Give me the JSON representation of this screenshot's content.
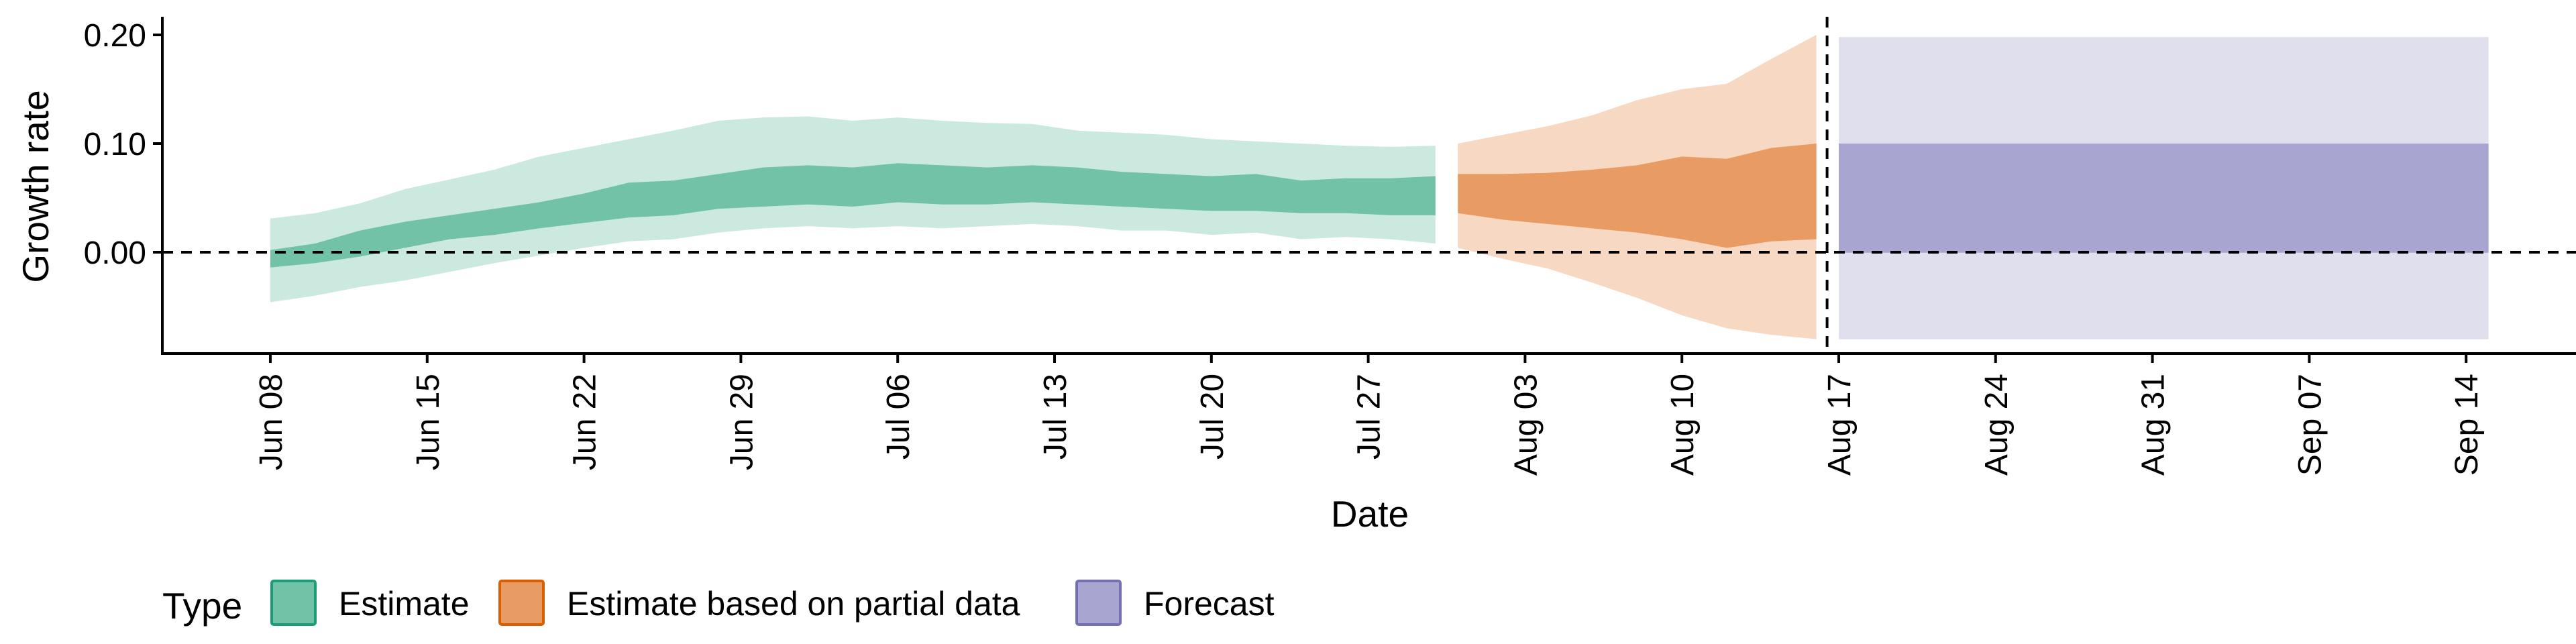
{
  "chart_data": {
    "type": "area",
    "xlabel": "Date",
    "ylabel": "Growth rate",
    "ylim": [
      -0.095,
      0.21
    ],
    "xlim": [
      "2020-06-01",
      "2020-09-21"
    ],
    "y_ticks": [
      "0.00",
      "0.10",
      "0.20"
    ],
    "x_ticks": [
      "Jun 08",
      "Jun 15",
      "Jun 22",
      "Jun 29",
      "Jul 06",
      "Jul 13",
      "Jul 20",
      "Jul 27",
      "Aug 03",
      "Aug 10",
      "Aug 17",
      "Aug 24",
      "Aug 31",
      "Sep 07",
      "Sep 14"
    ],
    "reference_lines": {
      "horizontal_y": 0,
      "vertical_date": "2020-08-16",
      "style": "dashed"
    },
    "grid": false,
    "legend": {
      "title": "Type",
      "position": "bottom-left"
    },
    "series": [
      {
        "name": "Estimate",
        "color": "#1b9e77",
        "points": [
          {
            "date": "2020-06-08",
            "lower90": -0.046,
            "lower50": -0.014,
            "upper50": 0.002,
            "upper90": 0.031
          },
          {
            "date": "2020-06-10",
            "lower90": -0.04,
            "lower50": -0.01,
            "upper50": 0.008,
            "upper90": 0.036
          },
          {
            "date": "2020-06-12",
            "lower90": -0.032,
            "lower50": -0.004,
            "upper50": 0.02,
            "upper90": 0.045
          },
          {
            "date": "2020-06-14",
            "lower90": -0.026,
            "lower50": 0.004,
            "upper50": 0.028,
            "upper90": 0.058
          },
          {
            "date": "2020-06-16",
            "lower90": -0.018,
            "lower50": 0.012,
            "upper50": 0.034,
            "upper90": 0.067
          },
          {
            "date": "2020-06-18",
            "lower90": -0.01,
            "lower50": 0.016,
            "upper50": 0.04,
            "upper90": 0.076
          },
          {
            "date": "2020-06-20",
            "lower90": -0.003,
            "lower50": 0.022,
            "upper50": 0.046,
            "upper90": 0.088
          },
          {
            "date": "2020-06-22",
            "lower90": 0.004,
            "lower50": 0.027,
            "upper50": 0.054,
            "upper90": 0.096
          },
          {
            "date": "2020-06-24",
            "lower90": 0.01,
            "lower50": 0.032,
            "upper50": 0.064,
            "upper90": 0.104
          },
          {
            "date": "2020-06-26",
            "lower90": 0.012,
            "lower50": 0.034,
            "upper50": 0.066,
            "upper90": 0.112
          },
          {
            "date": "2020-06-28",
            "lower90": 0.018,
            "lower50": 0.04,
            "upper50": 0.072,
            "upper90": 0.121
          },
          {
            "date": "2020-06-30",
            "lower90": 0.022,
            "lower50": 0.042,
            "upper50": 0.078,
            "upper90": 0.124
          },
          {
            "date": "2020-07-02",
            "lower90": 0.024,
            "lower50": 0.044,
            "upper50": 0.08,
            "upper90": 0.125
          },
          {
            "date": "2020-07-04",
            "lower90": 0.022,
            "lower50": 0.042,
            "upper50": 0.078,
            "upper90": 0.121
          },
          {
            "date": "2020-07-06",
            "lower90": 0.024,
            "lower50": 0.046,
            "upper50": 0.082,
            "upper90": 0.124
          },
          {
            "date": "2020-07-08",
            "lower90": 0.022,
            "lower50": 0.044,
            "upper50": 0.08,
            "upper90": 0.121
          },
          {
            "date": "2020-07-10",
            "lower90": 0.024,
            "lower50": 0.044,
            "upper50": 0.078,
            "upper90": 0.119
          },
          {
            "date": "2020-07-12",
            "lower90": 0.026,
            "lower50": 0.046,
            "upper50": 0.08,
            "upper90": 0.118
          },
          {
            "date": "2020-07-14",
            "lower90": 0.024,
            "lower50": 0.044,
            "upper50": 0.078,
            "upper90": 0.112
          },
          {
            "date": "2020-07-16",
            "lower90": 0.02,
            "lower50": 0.042,
            "upper50": 0.074,
            "upper90": 0.11
          },
          {
            "date": "2020-07-18",
            "lower90": 0.02,
            "lower50": 0.04,
            "upper50": 0.072,
            "upper90": 0.108
          },
          {
            "date": "2020-07-20",
            "lower90": 0.016,
            "lower50": 0.038,
            "upper50": 0.07,
            "upper90": 0.104
          },
          {
            "date": "2020-07-22",
            "lower90": 0.018,
            "lower50": 0.038,
            "upper50": 0.072,
            "upper90": 0.102
          },
          {
            "date": "2020-07-24",
            "lower90": 0.012,
            "lower50": 0.036,
            "upper50": 0.066,
            "upper90": 0.1
          },
          {
            "date": "2020-07-26",
            "lower90": 0.014,
            "lower50": 0.036,
            "upper50": 0.068,
            "upper90": 0.098
          },
          {
            "date": "2020-07-28",
            "lower90": 0.012,
            "lower50": 0.034,
            "upper50": 0.068,
            "upper90": 0.097
          },
          {
            "date": "2020-07-30",
            "lower90": 0.008,
            "lower50": 0.034,
            "upper50": 0.07,
            "upper90": 0.098
          }
        ]
      },
      {
        "name": "Estimate based on partial data",
        "color": "#d95f02",
        "points": [
          {
            "date": "2020-07-31",
            "lower90": 0.004,
            "lower50": 0.036,
            "upper50": 0.072,
            "upper90": 0.1
          },
          {
            "date": "2020-08-02",
            "lower90": -0.006,
            "lower50": 0.03,
            "upper50": 0.072,
            "upper90": 0.108
          },
          {
            "date": "2020-08-04",
            "lower90": -0.015,
            "lower50": 0.026,
            "upper50": 0.073,
            "upper90": 0.116
          },
          {
            "date": "2020-08-06",
            "lower90": -0.028,
            "lower50": 0.022,
            "upper50": 0.076,
            "upper90": 0.126
          },
          {
            "date": "2020-08-08",
            "lower90": -0.042,
            "lower50": 0.018,
            "upper50": 0.08,
            "upper90": 0.14
          },
          {
            "date": "2020-08-10",
            "lower90": -0.058,
            "lower50": 0.012,
            "upper50": 0.088,
            "upper90": 0.15
          },
          {
            "date": "2020-08-12",
            "lower90": -0.07,
            "lower50": 0.004,
            "upper50": 0.086,
            "upper90": 0.155
          },
          {
            "date": "2020-08-14",
            "lower90": -0.076,
            "lower50": 0.01,
            "upper50": 0.096,
            "upper90": 0.178
          },
          {
            "date": "2020-08-16",
            "lower90": -0.08,
            "lower50": 0.012,
            "upper50": 0.1,
            "upper90": 0.2
          }
        ]
      },
      {
        "name": "Forecast",
        "color": "#7570b3",
        "points": [
          {
            "date": "2020-08-17",
            "lower90": -0.08,
            "lower50": -0.0005,
            "upper50": 0.1,
            "upper90": 0.198
          },
          {
            "date": "2020-09-15",
            "lower90": -0.08,
            "lower50": -0.0005,
            "upper50": 0.1,
            "upper90": 0.198
          }
        ]
      }
    ]
  }
}
